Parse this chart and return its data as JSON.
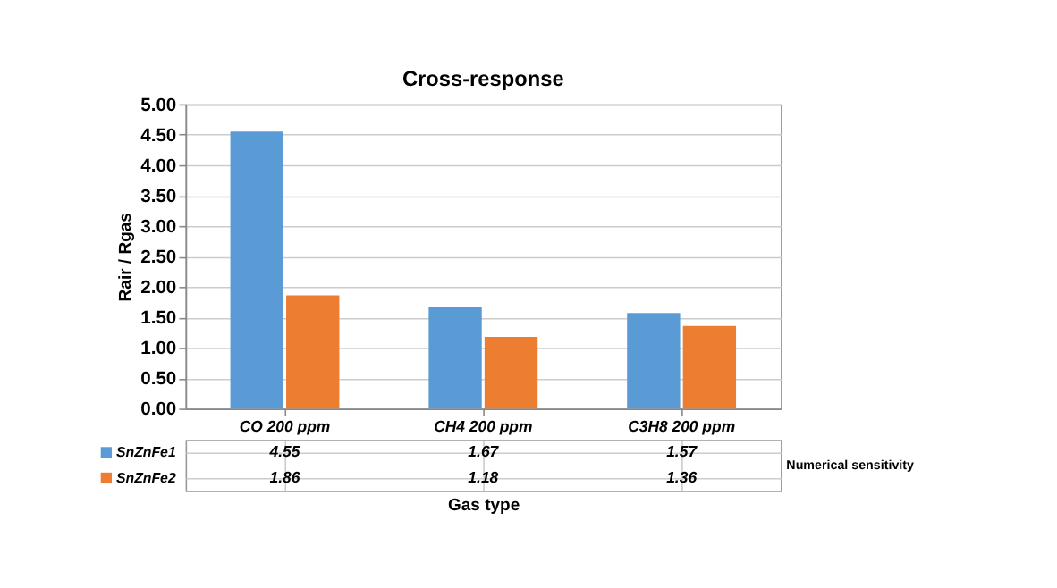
{
  "chart_data": {
    "type": "bar",
    "title": "Cross-response",
    "xlabel": "Gas type",
    "ylabel": "Rair / Rgas",
    "categories": [
      "CO 200 ppm",
      "CH4 200 ppm",
      "C3H8 200 ppm"
    ],
    "series": [
      {
        "name": "SnZnFe1",
        "color": "#5b9bd5",
        "values": [
          4.55,
          1.67,
          1.57
        ]
      },
      {
        "name": "SnZnFe2",
        "color": "#ed7d31",
        "values": [
          1.86,
          1.18,
          1.36
        ]
      }
    ],
    "ylim": [
      0,
      5
    ],
    "yticks": [
      {
        "value": 0,
        "label": "0.00"
      },
      {
        "value": 0.5,
        "label": "0.50"
      },
      {
        "value": 1,
        "label": "1.00"
      },
      {
        "value": 1.5,
        "label": "1.50"
      },
      {
        "value": 2,
        "label": "2.00"
      },
      {
        "value": 2.5,
        "label": "2.50"
      },
      {
        "value": 3,
        "label": "3.00"
      },
      {
        "value": 3.5,
        "label": "3.50"
      },
      {
        "value": 4,
        "label": "4.00"
      },
      {
        "value": 4.5,
        "label": "4.50"
      },
      {
        "value": 5,
        "label": "5.00"
      }
    ],
    "grid": "y",
    "legend": "bottom",
    "data_labels": true,
    "annotations": [
      "Numerical sensitivity"
    ]
  }
}
